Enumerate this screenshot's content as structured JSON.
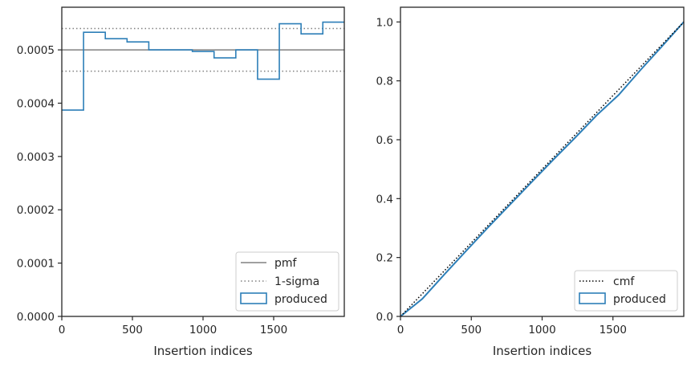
{
  "colors": {
    "histogram": "#2d7fb8",
    "pmf_line": "#808080",
    "sigma_line": "#808080",
    "cmf_line": "#000000",
    "axes": "#262626"
  },
  "chart_data": [
    {
      "type": "histogram",
      "xlabel": "Insertion indices",
      "ylabel": "",
      "xlim": [
        0,
        2000
      ],
      "ylim": [
        0,
        0.00058
      ],
      "xticks": [
        0,
        500,
        1000,
        1500
      ],
      "xtick_labels": [
        "0",
        "500",
        "1000",
        "1500"
      ],
      "yticks": [
        0,
        0.0001,
        0.0002,
        0.0003,
        0.0004,
        0.0005
      ],
      "ytick_labels": [
        "0.0000",
        "0.0001",
        "0.0002",
        "0.0003",
        "0.0004",
        "0.0005"
      ],
      "bin_edges": [
        0,
        154,
        308,
        462,
        616,
        770,
        924,
        1078,
        1232,
        1386,
        1540,
        1694,
        1848,
        2000
      ],
      "values": [
        0.000387,
        0.000533,
        0.000521,
        0.000515,
        0.0005,
        0.0005,
        0.000497,
        0.000485,
        0.0005,
        0.000445,
        0.000549,
        0.00053,
        0.000552
      ],
      "pmf": 0.0005,
      "sigma_band": [
        0.00046,
        0.00054
      ],
      "legend": {
        "placement": "lower-right",
        "entries": [
          "pmf",
          "1-sigma",
          "produced"
        ]
      }
    },
    {
      "type": "line",
      "xlabel": "Insertion indices",
      "ylabel": "",
      "xlim": [
        0,
        2000
      ],
      "ylim": [
        0,
        1.05
      ],
      "xticks": [
        0,
        500,
        1000,
        1500
      ],
      "xtick_labels": [
        "0",
        "500",
        "1000",
        "1500"
      ],
      "yticks": [
        0,
        0.2,
        0.4,
        0.6,
        0.8,
        1.0
      ],
      "ytick_labels": [
        "0.0",
        "0.2",
        "0.4",
        "0.6",
        "0.8",
        "1.0"
      ],
      "cmf": {
        "x": [
          0,
          2000
        ],
        "y": [
          0,
          1.0
        ]
      },
      "produced": {
        "x": [
          0,
          154,
          308,
          462,
          616,
          770,
          924,
          1078,
          1232,
          1386,
          1540,
          1694,
          1848,
          2000
        ],
        "y": [
          0,
          0.0596,
          0.1417,
          0.2219,
          0.3012,
          0.3782,
          0.4552,
          0.5318,
          0.6065,
          0.6835,
          0.752,
          0.8366,
          0.9182,
          1.0
        ]
      },
      "legend": {
        "placement": "lower-right",
        "entries": [
          "cmf",
          "produced"
        ]
      }
    }
  ]
}
